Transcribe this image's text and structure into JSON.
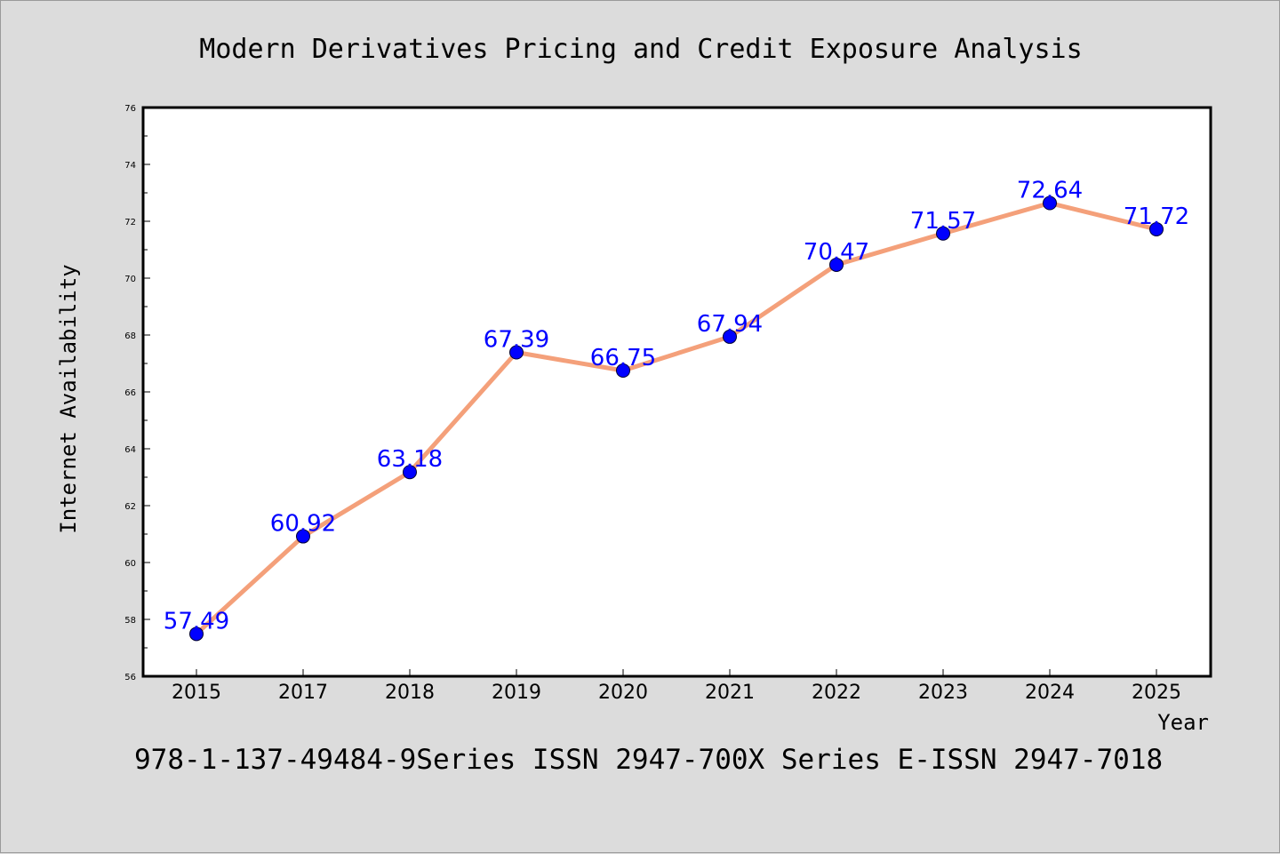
{
  "chart_data": {
    "type": "line",
    "title": "Modern Derivatives Pricing and Credit Exposure Analysis",
    "xlabel": "Year",
    "ylabel": "Internet Availability",
    "categories": [
      "2015",
      "2017",
      "2018",
      "2019",
      "2020",
      "2021",
      "2022",
      "2023",
      "2024",
      "2025"
    ],
    "series": [
      {
        "values": [
          57.49,
          60.92,
          63.18,
          67.39,
          66.75,
          67.94,
          70.47,
          71.57,
          72.64,
          71.72
        ]
      }
    ],
    "data_labels": [
      "57.49",
      "60.92",
      "63.18",
      "67.39",
      "66.75",
      "67.94",
      "70.47",
      "71.57",
      "72.64",
      "71.72"
    ],
    "ylim": [
      56,
      76
    ],
    "yticks": [
      56,
      58,
      60,
      62,
      64,
      66,
      68,
      70,
      72,
      74,
      76
    ],
    "grid": false,
    "legend": "none",
    "colors": {
      "line": "#f4a07a",
      "marker": "#0000ff",
      "data_label": "#0000ff",
      "plot_background": "#ffffff",
      "page_background": "#dcdcdc"
    }
  },
  "footer": {
    "text": "978-1-137-49484-9Series ISSN 2947-700X Series E-ISSN 2947-7018"
  }
}
